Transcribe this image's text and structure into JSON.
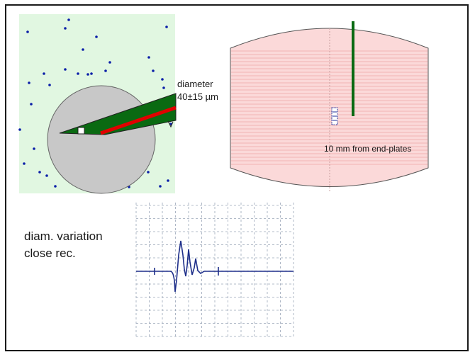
{
  "labels": {
    "diameter": "diameter\n40±15 µm",
    "distance": "10 mm from end-plates",
    "variation": "diam. variation\nclose rec."
  },
  "colors": {
    "medium_bg": "#e1f7e1",
    "particle": "#0b1fa8",
    "wire_disk": "#c8c8c8",
    "probe_body": "#0a6a12",
    "probe_core": "#e00000",
    "chamber_fill": "#fbd9d9",
    "chamber_lines": "#f0b4b4",
    "signal_line": "#1e2f8a",
    "grid": "#9aa6b8"
  },
  "icons": {
    "probe": "electrode-needle-icon",
    "sample": "fibre-sample-icon"
  }
}
